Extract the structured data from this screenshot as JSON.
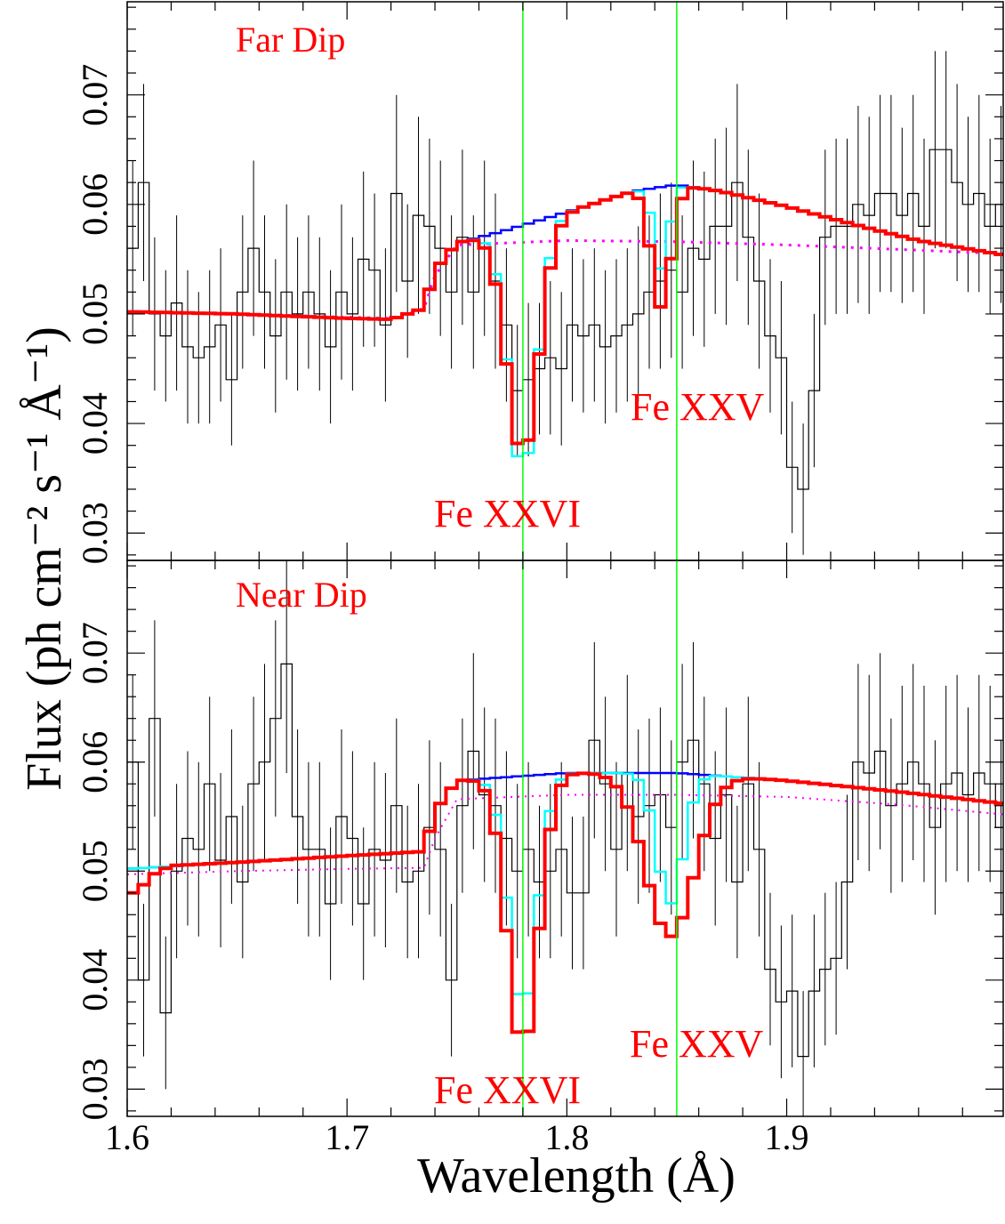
{
  "colors": {
    "data": "#000000",
    "continuum": "#0000ff",
    "model_red": "#ff0000",
    "model_cyan": "#00ffff",
    "baseline_magenta": "#ff00ff",
    "line_markers": "#00ff00",
    "labels": "#ff0000"
  },
  "axes": {
    "xlabel": "Wavelength (Å)",
    "ylabel": "Flux (ph cm⁻² s⁻¹ Å⁻¹)",
    "xticks": [
      "1.6",
      "1.7",
      "1.8",
      "1.9"
    ],
    "yticks": [
      "0.03",
      "0.04",
      "0.05",
      "0.06",
      "0.07"
    ]
  },
  "chart_data": [
    {
      "type": "line",
      "panel": "top",
      "label": "Far Dip",
      "line_labels": [
        "Fe XXVI",
        "Fe XXV"
      ],
      "xlim": [
        1.6,
        1.9985
      ],
      "ylim": [
        0.0275,
        0.0785
      ],
      "marker_lines": [
        1.78,
        1.85
      ],
      "bin_width": 0.005,
      "data_x_start": 1.6,
      "data_values": [
        0.056,
        0.062,
        0.05,
        0.048,
        0.051,
        0.047,
        0.046,
        0.047,
        0.049,
        0.044,
        0.052,
        0.056,
        0.052,
        0.048,
        0.052,
        0.05,
        0.052,
        0.05,
        0.047,
        0.052,
        0.05,
        0.055,
        0.054,
        0.049,
        0.061,
        0.053,
        0.059,
        0.058,
        0.056,
        0.052,
        0.057,
        0.052,
        0.056,
        0.053,
        0.049,
        0.043,
        0.044,
        0.045,
        0.046,
        0.045,
        0.049,
        0.048,
        0.049,
        0.047,
        0.048,
        0.049,
        0.05,
        0.052,
        0.053,
        0.054,
        0.052,
        0.056,
        0.055,
        0.058,
        0.058,
        0.062,
        0.057,
        0.053,
        0.048,
        0.046,
        0.036,
        0.034,
        0.043,
        0.057,
        0.058,
        0.058,
        0.06,
        0.059,
        0.061,
        0.061,
        0.059,
        0.061,
        0.058,
        0.065,
        0.065,
        0.062,
        0.06,
        0.061,
        0.058,
        0.06,
        0.052,
        0.054,
        0.062,
        0.061,
        0.063,
        0.059,
        0.06,
        0.063,
        0.061,
        0.066,
        0.066,
        0.069,
        0.059,
        0.062,
        0.06,
        0.06,
        0.06,
        0.056,
        0.058,
        0.061,
        0.06,
        0.057,
        0.06,
        0.058,
        0.058,
        0.056,
        0.052,
        0.056,
        0.057,
        0.058,
        0.061,
        0.062,
        0.055,
        0.052,
        0.053,
        0.056,
        0.055,
        0.059,
        0.049,
        0.05,
        0.053,
        0.052,
        0.053,
        0.055,
        0.052,
        0.057,
        0.052,
        0.05,
        0.049,
        0.051,
        0.048,
        0.053,
        0.058,
        0.056,
        0.057,
        0.052,
        0.06,
        0.056,
        0.052,
        0.055,
        0.055,
        0.055,
        0.055,
        0.055,
        0.052,
        0.052
      ],
      "data_errors": [
        0.008,
        0.009,
        0.007,
        0.006,
        0.008,
        0.007,
        0.006,
        0.007,
        0.007,
        0.006,
        0.007,
        0.008,
        0.007,
        0.007,
        0.008,
        0.007,
        0.007,
        0.007,
        0.007,
        0.008,
        0.007,
        0.008,
        0.007,
        0.007,
        0.009,
        0.007,
        0.009,
        0.008,
        0.008,
        0.007,
        0.008,
        0.007,
        0.008,
        0.008,
        0.007,
        0.006,
        0.007,
        0.006,
        0.007,
        0.007,
        0.007,
        0.007,
        0.007,
        0.007,
        0.007,
        0.007,
        0.008,
        0.007,
        0.008,
        0.008,
        0.007,
        0.008,
        0.008,
        0.008,
        0.009,
        0.009,
        0.008,
        0.008,
        0.007,
        0.007,
        0.006,
        0.006,
        0.007,
        0.008,
        0.008,
        0.008,
        0.009,
        0.009,
        0.009,
        0.009,
        0.008,
        0.009,
        0.008,
        0.009,
        0.009,
        0.009,
        0.008,
        0.009,
        0.008,
        0.009,
        0.008,
        0.008,
        0.009,
        0.009,
        0.009,
        0.008,
        0.009,
        0.009,
        0.009,
        0.01,
        0.009,
        0.01,
        0.009,
        0.009,
        0.009,
        0.009,
        0.009,
        0.008,
        0.008,
        0.009,
        0.009,
        0.008,
        0.009,
        0.009,
        0.009,
        0.008,
        0.008,
        0.008,
        0.008,
        0.009,
        0.009,
        0.009,
        0.008,
        0.008,
        0.008,
        0.008,
        0.008,
        0.009,
        0.007,
        0.007,
        0.008,
        0.008,
        0.008,
        0.008,
        0.008,
        0.008,
        0.008,
        0.008,
        0.007,
        0.007,
        0.007,
        0.008,
        0.009,
        0.008,
        0.008,
        0.008,
        0.009,
        0.008,
        0.008,
        0.008,
        0.008,
        0.008,
        0.008,
        0.008,
        0.008,
        0.008
      ],
      "continuum": [
        [
          1.6,
          0.0502
        ],
        [
          1.65,
          0.05
        ],
        [
          1.7,
          0.0496
        ],
        [
          1.72,
          0.0495
        ],
        [
          1.735,
          0.0505
        ],
        [
          1.74,
          0.054
        ],
        [
          1.75,
          0.0565
        ],
        [
          1.77,
          0.0575
        ],
        [
          1.8,
          0.0593
        ],
        [
          1.83,
          0.0612
        ],
        [
          1.85,
          0.0618
        ],
        [
          1.87,
          0.0612
        ],
        [
          1.9,
          0.0598
        ],
        [
          1.93,
          0.0582
        ],
        [
          1.96,
          0.0567
        ],
        [
          1.9985,
          0.0554
        ]
      ],
      "baseline": [
        [
          1.6,
          0.0502
        ],
        [
          1.65,
          0.05
        ],
        [
          1.7,
          0.0497
        ],
        [
          1.72,
          0.0496
        ],
        [
          1.735,
          0.0505
        ],
        [
          1.74,
          0.0535
        ],
        [
          1.75,
          0.0563
        ],
        [
          1.8,
          0.0567
        ],
        [
          1.85,
          0.0566
        ],
        [
          1.9,
          0.0563
        ],
        [
          1.95,
          0.0559
        ],
        [
          1.9985,
          0.0555
        ]
      ],
      "absorption": [
        {
          "center": 1.78,
          "red_depth": 0.021,
          "red_width": 0.0072,
          "cyan_depth": 0.0225,
          "cyan_width": 0.0066
        },
        {
          "center": 1.843,
          "red_depth": 0.011,
          "red_width": 0.0045,
          "cyan_depth": 0.0075,
          "cyan_width": 0.0035
        }
      ]
    },
    {
      "type": "line",
      "panel": "bottom",
      "label": "Near Dip",
      "line_labels": [
        "Fe XXVI",
        "Fe XXV"
      ],
      "xlim": [
        1.6,
        1.9985
      ],
      "ylim": [
        0.0275,
        0.0785
      ],
      "marker_lines": [
        1.78,
        1.85
      ],
      "bin_width": 0.005,
      "data_x_start": 1.6,
      "data_values": [
        0.06,
        0.04,
        0.064,
        0.037,
        0.05,
        0.053,
        0.052,
        0.058,
        0.051,
        0.055,
        0.049,
        0.058,
        0.06,
        0.064,
        0.069,
        0.055,
        0.052,
        0.052,
        0.047,
        0.055,
        0.053,
        0.047,
        0.052,
        0.051,
        0.056,
        0.049,
        0.05,
        0.054,
        0.052,
        0.04,
        0.056,
        0.061,
        0.057,
        0.056,
        0.053,
        0.05,
        0.052,
        0.049,
        0.05,
        0.052,
        0.048,
        0.048,
        0.062,
        0.058,
        0.052,
        0.059,
        0.055,
        0.056,
        0.057,
        0.054,
        0.06,
        0.062,
        0.058,
        0.053,
        0.057,
        0.049,
        0.058,
        0.052,
        0.041,
        0.038,
        0.039,
        0.033,
        0.039,
        0.041,
        0.042,
        0.049,
        0.06,
        0.059,
        0.061,
        0.056,
        0.058,
        0.06,
        0.058,
        0.054,
        0.058,
        0.059,
        0.057,
        0.059,
        0.058,
        0.054,
        0.05,
        0.041,
        0.04,
        0.042,
        0.046,
        0.048,
        0.052,
        0.054,
        0.056,
        0.058,
        0.055,
        0.057,
        0.059,
        0.057,
        0.06,
        0.058,
        0.062,
        0.057,
        0.055,
        0.053,
        0.057,
        0.054,
        0.053,
        0.055,
        0.052,
        0.056,
        0.054,
        0.056,
        0.054,
        0.052,
        0.054,
        0.057,
        0.059,
        0.056,
        0.054,
        0.057,
        0.053,
        0.055,
        0.057,
        0.052,
        0.05,
        0.053,
        0.055,
        0.053,
        0.055,
        0.053,
        0.052,
        0.054,
        0.051,
        0.053,
        0.06,
        0.062,
        0.057,
        0.055,
        0.055,
        0.057,
        0.059,
        0.056,
        0.058,
        0.051,
        0.053,
        0.058,
        0.052,
        0.055,
        0.054
      ],
      "data_errors": [
        0.008,
        0.007,
        0.009,
        0.007,
        0.008,
        0.008,
        0.008,
        0.008,
        0.008,
        0.008,
        0.007,
        0.008,
        0.009,
        0.009,
        0.01,
        0.008,
        0.008,
        0.008,
        0.007,
        0.008,
        0.008,
        0.007,
        0.008,
        0.008,
        0.008,
        0.007,
        0.008,
        0.008,
        0.008,
        0.007,
        0.008,
        0.009,
        0.008,
        0.008,
        0.008,
        0.008,
        0.008,
        0.007,
        0.008,
        0.008,
        0.007,
        0.007,
        0.009,
        0.008,
        0.008,
        0.009,
        0.008,
        0.008,
        0.008,
        0.008,
        0.009,
        0.009,
        0.008,
        0.008,
        0.008,
        0.007,
        0.008,
        0.008,
        0.007,
        0.007,
        0.007,
        0.006,
        0.007,
        0.007,
        0.007,
        0.008,
        0.009,
        0.009,
        0.009,
        0.008,
        0.009,
        0.009,
        0.009,
        0.008,
        0.009,
        0.009,
        0.008,
        0.009,
        0.009,
        0.008,
        0.008,
        0.007,
        0.007,
        0.007,
        0.008,
        0.008,
        0.008,
        0.008,
        0.008,
        0.009,
        0.008,
        0.008,
        0.009,
        0.008,
        0.009,
        0.009,
        0.009,
        0.008,
        0.008,
        0.008,
        0.008,
        0.008,
        0.008,
        0.008,
        0.008,
        0.008,
        0.008,
        0.008,
        0.008,
        0.008,
        0.008,
        0.008,
        0.009,
        0.008,
        0.008,
        0.008,
        0.008,
        0.008,
        0.008,
        0.008,
        0.008,
        0.008,
        0.008,
        0.008,
        0.008,
        0.008,
        0.008,
        0.008,
        0.008,
        0.008,
        0.009,
        0.009,
        0.008,
        0.008,
        0.008,
        0.008,
        0.009,
        0.008,
        0.008,
        0.008,
        0.008,
        0.008,
        0.008,
        0.008,
        0.008
      ],
      "continuum": [
        [
          1.6,
          0.0502
        ],
        [
          1.65,
          0.0508
        ],
        [
          1.7,
          0.0514
        ],
        [
          1.735,
          0.0518
        ],
        [
          1.74,
          0.0555
        ],
        [
          1.75,
          0.0583
        ],
        [
          1.8,
          0.059
        ],
        [
          1.85,
          0.059
        ],
        [
          1.9,
          0.0583
        ],
        [
          1.95,
          0.0573
        ],
        [
          1.9985,
          0.0562
        ]
      ],
      "red_continuum": [
        [
          1.6,
          0.048
        ],
        [
          1.605,
          0.048
        ],
        [
          1.61,
          0.0495
        ],
        [
          1.62,
          0.0505
        ],
        [
          1.65,
          0.0508
        ],
        [
          1.7,
          0.0514
        ],
        [
          1.735,
          0.0518
        ],
        [
          1.74,
          0.0555
        ],
        [
          1.75,
          0.0583
        ],
        [
          1.8,
          0.059
        ],
        [
          1.85,
          0.059
        ],
        [
          1.9,
          0.0583
        ],
        [
          1.95,
          0.0573
        ],
        [
          1.9985,
          0.0562
        ]
      ],
      "baseline": [
        [
          1.6,
          0.0497
        ],
        [
          1.65,
          0.05
        ],
        [
          1.7,
          0.0502
        ],
        [
          1.735,
          0.0503
        ],
        [
          1.74,
          0.053
        ],
        [
          1.75,
          0.0566
        ],
        [
          1.8,
          0.057
        ],
        [
          1.85,
          0.057
        ],
        [
          1.9,
          0.0568
        ],
        [
          1.95,
          0.0561
        ],
        [
          1.9985,
          0.0552
        ]
      ],
      "absorption": [
        {
          "center": 1.78,
          "red_depth": 0.025,
          "red_width": 0.007,
          "cyan_depth": 0.0215,
          "cyan_width": 0.0065
        },
        {
          "center": 1.847,
          "red_depth": 0.015,
          "red_width": 0.011,
          "cyan_depth": 0.012,
          "cyan_width": 0.006
        }
      ]
    }
  ]
}
